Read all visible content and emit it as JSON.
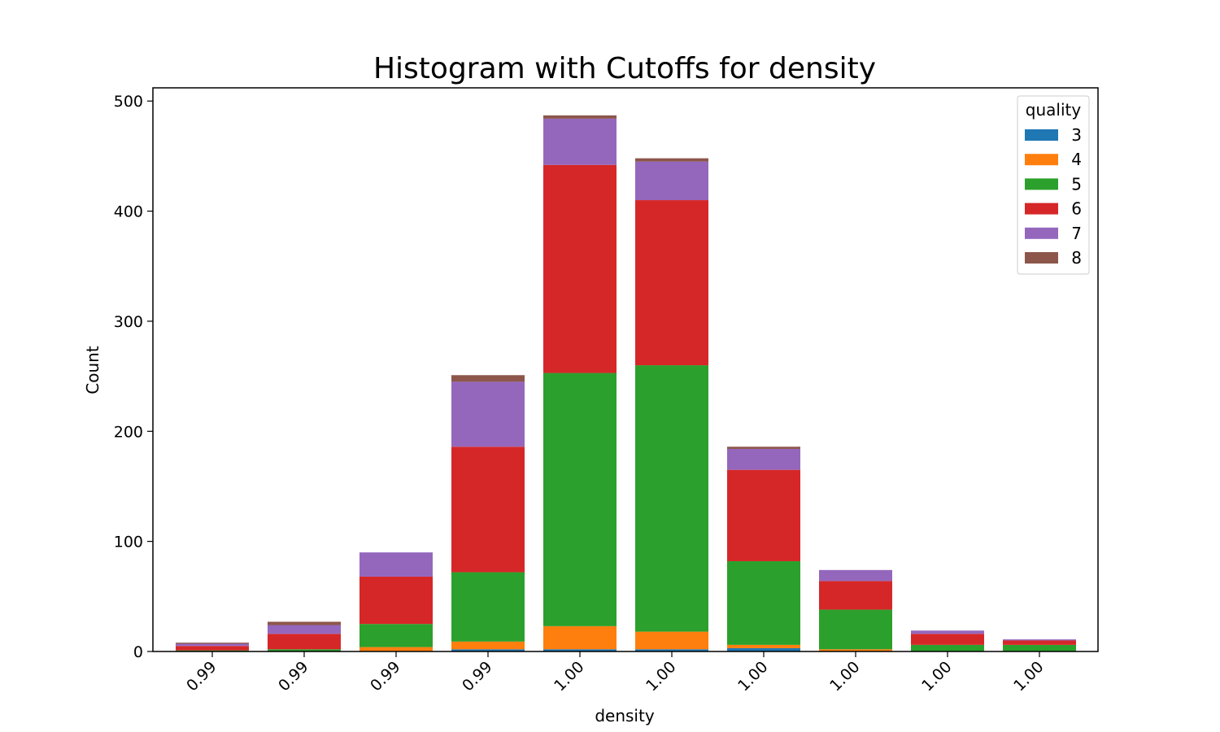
{
  "chart_data": {
    "type": "bar",
    "stacked": true,
    "title": "Histogram with Cutoffs for density",
    "xlabel": "density",
    "ylabel": "Count",
    "ylim": [
      0,
      512
    ],
    "yticks": [
      0,
      100,
      200,
      300,
      400,
      500
    ],
    "grid": false,
    "categories": [
      "0.99",
      "0.99",
      "0.99",
      "0.99",
      "1.00",
      "1.00",
      "1.00",
      "1.00",
      "1.00",
      "1.00"
    ],
    "legend": {
      "title": "quality",
      "placement": "top-right"
    },
    "series": [
      {
        "name": "3",
        "color": "#1f77b4",
        "values": [
          0,
          0,
          0,
          2,
          2,
          2,
          3,
          0,
          0,
          0
        ]
      },
      {
        "name": "4",
        "color": "#ff7f0e",
        "values": [
          0,
          0,
          4,
          7,
          21,
          16,
          3,
          2,
          0,
          0
        ]
      },
      {
        "name": "5",
        "color": "#2ca02c",
        "values": [
          1,
          2,
          21,
          63,
          230,
          242,
          76,
          36,
          6,
          6
        ]
      },
      {
        "name": "6",
        "color": "#d62728",
        "values": [
          4,
          14,
          43,
          114,
          189,
          150,
          83,
          26,
          10,
          4
        ]
      },
      {
        "name": "7",
        "color": "#9467bd",
        "values": [
          2,
          8,
          22,
          59,
          42,
          35,
          19,
          10,
          3,
          1
        ]
      },
      {
        "name": "8",
        "color": "#8c564b",
        "values": [
          1,
          3,
          0,
          6,
          3,
          3,
          2,
          0,
          0,
          0
        ]
      }
    ]
  }
}
